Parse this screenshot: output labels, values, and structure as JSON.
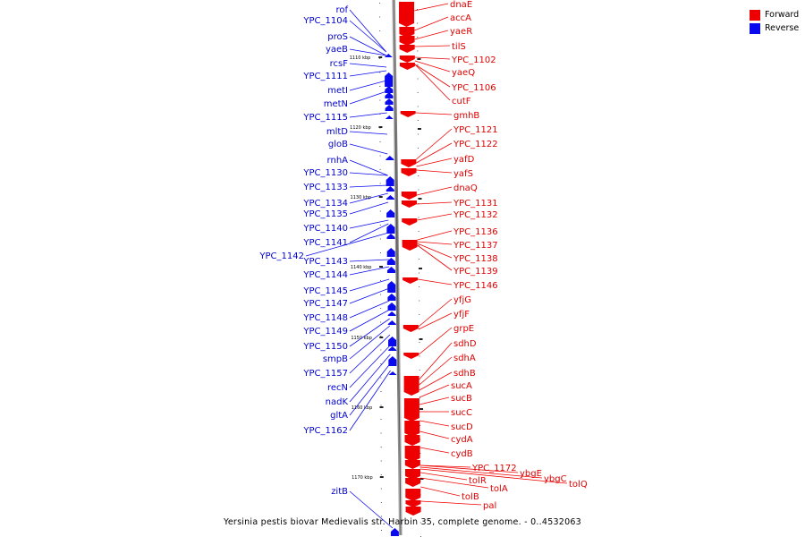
{
  "legend": {
    "forward": {
      "label": "Forward",
      "color": "#ee0000"
    },
    "reverse": {
      "label": "Reverse",
      "color": "#0a0aee"
    }
  },
  "caption": "Yersinia pestis biovar Medievalis str. Harbin 35, complete genome. - 0..4532063",
  "scale_labels": [
    "1110 kbp",
    "1120 kbp",
    "1130 kbp",
    "1140 kbp",
    "1150 kbp",
    "1160 kbp",
    "1170 kbp"
  ],
  "forward_genes": [
    "dnaE",
    "accA",
    "yaeR",
    "tilS",
    "YPC_1102",
    "yaeQ",
    "YPC_1106",
    "cutF",
    "gmhB",
    "YPC_1121",
    "YPC_1122",
    "yafD",
    "yafS",
    "dnaQ",
    "YPC_1131",
    "YPC_1132",
    "YPC_1136",
    "YPC_1137",
    "YPC_1138",
    "YPC_1139",
    "YPC_1146",
    "yfjG",
    "yfjF",
    "grpE",
    "sdhD",
    "sdhA",
    "sdhB",
    "sucA",
    "sucB",
    "sucC",
    "sucD",
    "cydA",
    "cydB",
    "YPC_1172",
    "ybgE",
    "ybgC",
    "tolQ",
    "tolR",
    "tolA",
    "tolB",
    "pal"
  ],
  "reverse_genes": [
    "rof",
    "YPC_1104",
    "proS",
    "yaeB",
    "rcsF",
    "YPC_1111",
    "metI",
    "metN",
    "YPC_1115",
    "mltD",
    "gloB",
    "rnhA",
    "YPC_1130",
    "YPC_1133",
    "YPC_1134",
    "YPC_1135",
    "YPC_1140",
    "YPC_1141",
    "YPC_1142",
    "YPC_1143",
    "YPC_1144",
    "YPC_1145",
    "YPC_1147",
    "YPC_1148",
    "YPC_1149",
    "YPC_1150",
    "smpB",
    "YPC_1157",
    "recN",
    "nadK",
    "gltA",
    "YPC_1162",
    "zitB"
  ]
}
